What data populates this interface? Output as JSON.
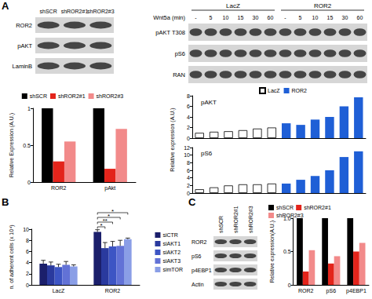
{
  "figure": {
    "letters": [
      "A",
      "B",
      "C"
    ],
    "blots": [
      {
        "lanes": [
          "shSCR",
          "shROR2#1",
          "shROR2#3"
        ],
        "rows": [
          "ROR2",
          "pAKT",
          "LaminB"
        ]
      },
      {
        "header": "Wnt5a (min)",
        "groups": [
          "LacZ",
          "ROR2"
        ],
        "lanes": [
          "-",
          "5",
          "10",
          "15",
          "30",
          "60",
          "-",
          "5",
          "10",
          "15",
          "30",
          "60"
        ],
        "rows": [
          "pAKT T308",
          "pS6",
          "RAN"
        ]
      },
      {
        "lanes": [
          "shSCR",
          "shROR2#1",
          "shROR2#3"
        ],
        "rows": [
          "ROR2",
          "pS6",
          "p4EBP1",
          "Actin"
        ]
      }
    ]
  },
  "chart_data": [
    {
      "type": "bar",
      "y_label": "Relative Expression (A.U.)",
      "categories": [
        "ROR2",
        "pAkt"
      ],
      "series": [
        {
          "name": "shSCR",
          "color": "#000000",
          "values": [
            1,
            1
          ]
        },
        {
          "name": "shROR2#1",
          "color": "#e3241b",
          "values": [
            0.28,
            0.18
          ]
        },
        {
          "name": "shROR2#3",
          "color": "#f28a8a",
          "values": [
            0.55,
            0.72
          ]
        }
      ],
      "ylim": [
        0,
        1
      ],
      "yticks": [
        0,
        0.5,
        1
      ],
      "legend": "top"
    },
    {
      "type": "bar",
      "title": "pAKT",
      "y_label": "Relative expression (A.U.)",
      "categories": [
        null,
        null,
        null,
        null,
        null,
        null,
        null,
        null,
        null,
        null,
        null,
        null
      ],
      "series": [
        {
          "name": "LacZ",
          "color": "#ffffff",
          "values": [
            1,
            1.2,
            1.3,
            1.5,
            1.8,
            2.0,
            null,
            null,
            null,
            null,
            null,
            null
          ]
        },
        {
          "name": "ROR2",
          "color": "#1f5fd6",
          "values": [
            null,
            null,
            null,
            null,
            null,
            null,
            2.8,
            2.5,
            3.5,
            4,
            6,
            7.7
          ]
        }
      ],
      "ylim": [
        0,
        8
      ],
      "yticks": [
        0,
        2,
        4,
        6,
        8
      ],
      "legend": "top"
    },
    {
      "type": "bar",
      "title": "pS6",
      "categories": [
        null,
        null,
        null,
        null,
        null,
        null,
        null,
        null,
        null,
        null,
        null,
        null
      ],
      "series": [
        {
          "name": "LacZ",
          "color": "#ffffff",
          "values": [
            1,
            1.5,
            2,
            2.3,
            2.3,
            2.5,
            null,
            null,
            null,
            null,
            null,
            null
          ]
        },
        {
          "name": "ROR2",
          "color": "#1f5fd6",
          "values": [
            null,
            null,
            null,
            null,
            null,
            null,
            2.5,
            3.5,
            4.5,
            6,
            9.5,
            11
          ]
        }
      ],
      "ylim": [
        0,
        12
      ],
      "yticks": [
        0,
        2,
        4,
        6,
        8,
        10,
        12
      ]
    },
    {
      "type": "bar",
      "y_label": "n. of adherent cells (x 10⁴)",
      "categories": [
        "LacZ",
        "ROR2"
      ],
      "series": [
        {
          "name": "siCTR",
          "color": "#1b1f6b",
          "values": [
            3.8,
            9.5
          ],
          "errors": [
            0.6,
            0.4
          ]
        },
        {
          "name": "siAKT1",
          "color": "#2a3a9e",
          "values": [
            3.5,
            6.6
          ],
          "errors": [
            0.6,
            1.0
          ]
        },
        {
          "name": "siAKT2",
          "color": "#3d55c4",
          "values": [
            3.2,
            6.9
          ],
          "errors": [
            0.5,
            0.9
          ]
        },
        {
          "name": "siAKT3",
          "color": "#6272d6",
          "values": [
            3.6,
            7.0
          ],
          "errors": [
            0.6,
            1.0
          ]
        },
        {
          "name": "simTOR",
          "color": "#8a9ee6",
          "values": [
            3.3,
            8.2
          ],
          "errors": [
            0.3,
            0.2
          ]
        }
      ],
      "ylim": [
        0,
        10
      ],
      "yticks": [
        0,
        2,
        4,
        6,
        8,
        10
      ],
      "legend": "right",
      "annotations": [
        {
          "category": "ROR2",
          "from": "siCTR",
          "to": "siAKT1",
          "label": "*"
        },
        {
          "category": "ROR2",
          "from": "siCTR",
          "to": "siAKT2",
          "label": "**"
        },
        {
          "category": "ROR2",
          "from": "siCTR",
          "to": "siAKT3",
          "label": "*"
        },
        {
          "category": "ROR2",
          "from": "siCTR",
          "to": "simTOR",
          "label": "*"
        }
      ]
    },
    {
      "type": "bar",
      "y_label": "Relative expression(A.U.)",
      "categories": [
        "ROR2",
        "pS6",
        "p4EBP1"
      ],
      "series": [
        {
          "name": "shSCR",
          "color": "#000000",
          "values": [
            1,
            1,
            1
          ]
        },
        {
          "name": "shROR2#1",
          "color": "#e3241b",
          "values": [
            0.2,
            0.32,
            0.5
          ]
        },
        {
          "name": "shROR2#3",
          "color": "#f28a8a",
          "values": [
            0.52,
            0.43,
            0.63
          ]
        }
      ],
      "ylim": [
        0,
        1
      ],
      "yticks": [
        0,
        0.5,
        {
          "value": 1,
          "label": "1.0"
        }
      ],
      "legend": "top"
    }
  ]
}
